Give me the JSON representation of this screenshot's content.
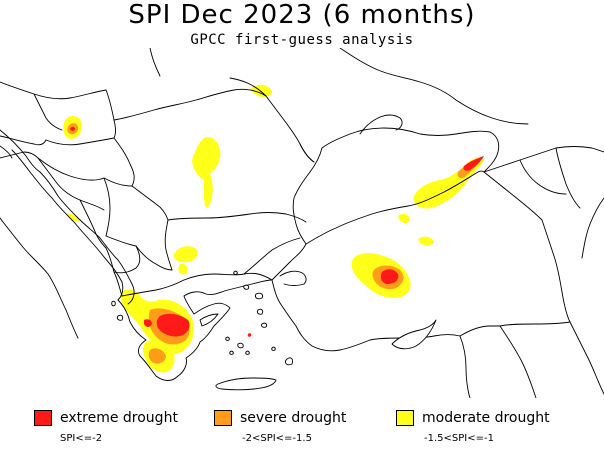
{
  "title": "SPI Dec 2023 (6 months)",
  "subtitle": "GPCC first-guess analysis",
  "legend": [
    {
      "label": "extreme drought",
      "range": "SPI<=-2",
      "color": "#ff1a1a"
    },
    {
      "label": "severe drought",
      "range": "-2<SPI<=-1.5",
      "color": "#ff9c1a"
    },
    {
      "label": "moderate drought",
      "range": "-1.5<SPI<=-1",
      "color": "#ffff1a"
    }
  ],
  "colors": {
    "extreme": "#ff1a1a",
    "severe": "#ff9c1a",
    "moderate": "#ffff1a",
    "borders": "#000000",
    "background": "#ffffff"
  }
}
